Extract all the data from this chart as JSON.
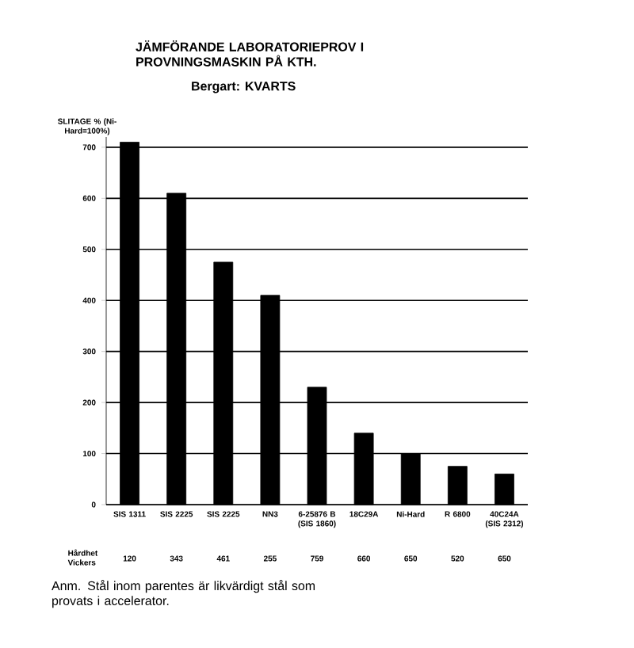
{
  "chart_data": {
    "type": "bar",
    "title": "JÄMFÖRANDE LABORATORIEPROV I PROVNINGSMASKIN PÅ KTH.",
    "subtitle": "Bergart: KVARTS",
    "ylabel": "SLITAGE % (Ni-Hard=100%)",
    "categories": [
      "SIS 1311",
      "SIS 2225",
      "SIS 2225",
      "NN3",
      "6-25876 B (SIS 1860)",
      "18C29A",
      "Ni-Hard",
      "R 6800",
      "40C24A (SIS 2312)"
    ],
    "values": [
      710,
      610,
      475,
      410,
      230,
      140,
      100,
      75,
      60
    ],
    "color": "#000000",
    "ylim": [
      0,
      720
    ],
    "yticks": [
      0,
      100,
      200,
      300,
      400,
      500,
      600,
      700
    ],
    "grid": "y",
    "annotations": [
      "Hårdhet Vickers",
      "120",
      "343",
      "461",
      "255",
      "759",
      "660",
      "650",
      "520",
      "650",
      "Anm. Stål inom parentes är likvärdigt stål som provats i accelerator."
    ]
  }
}
